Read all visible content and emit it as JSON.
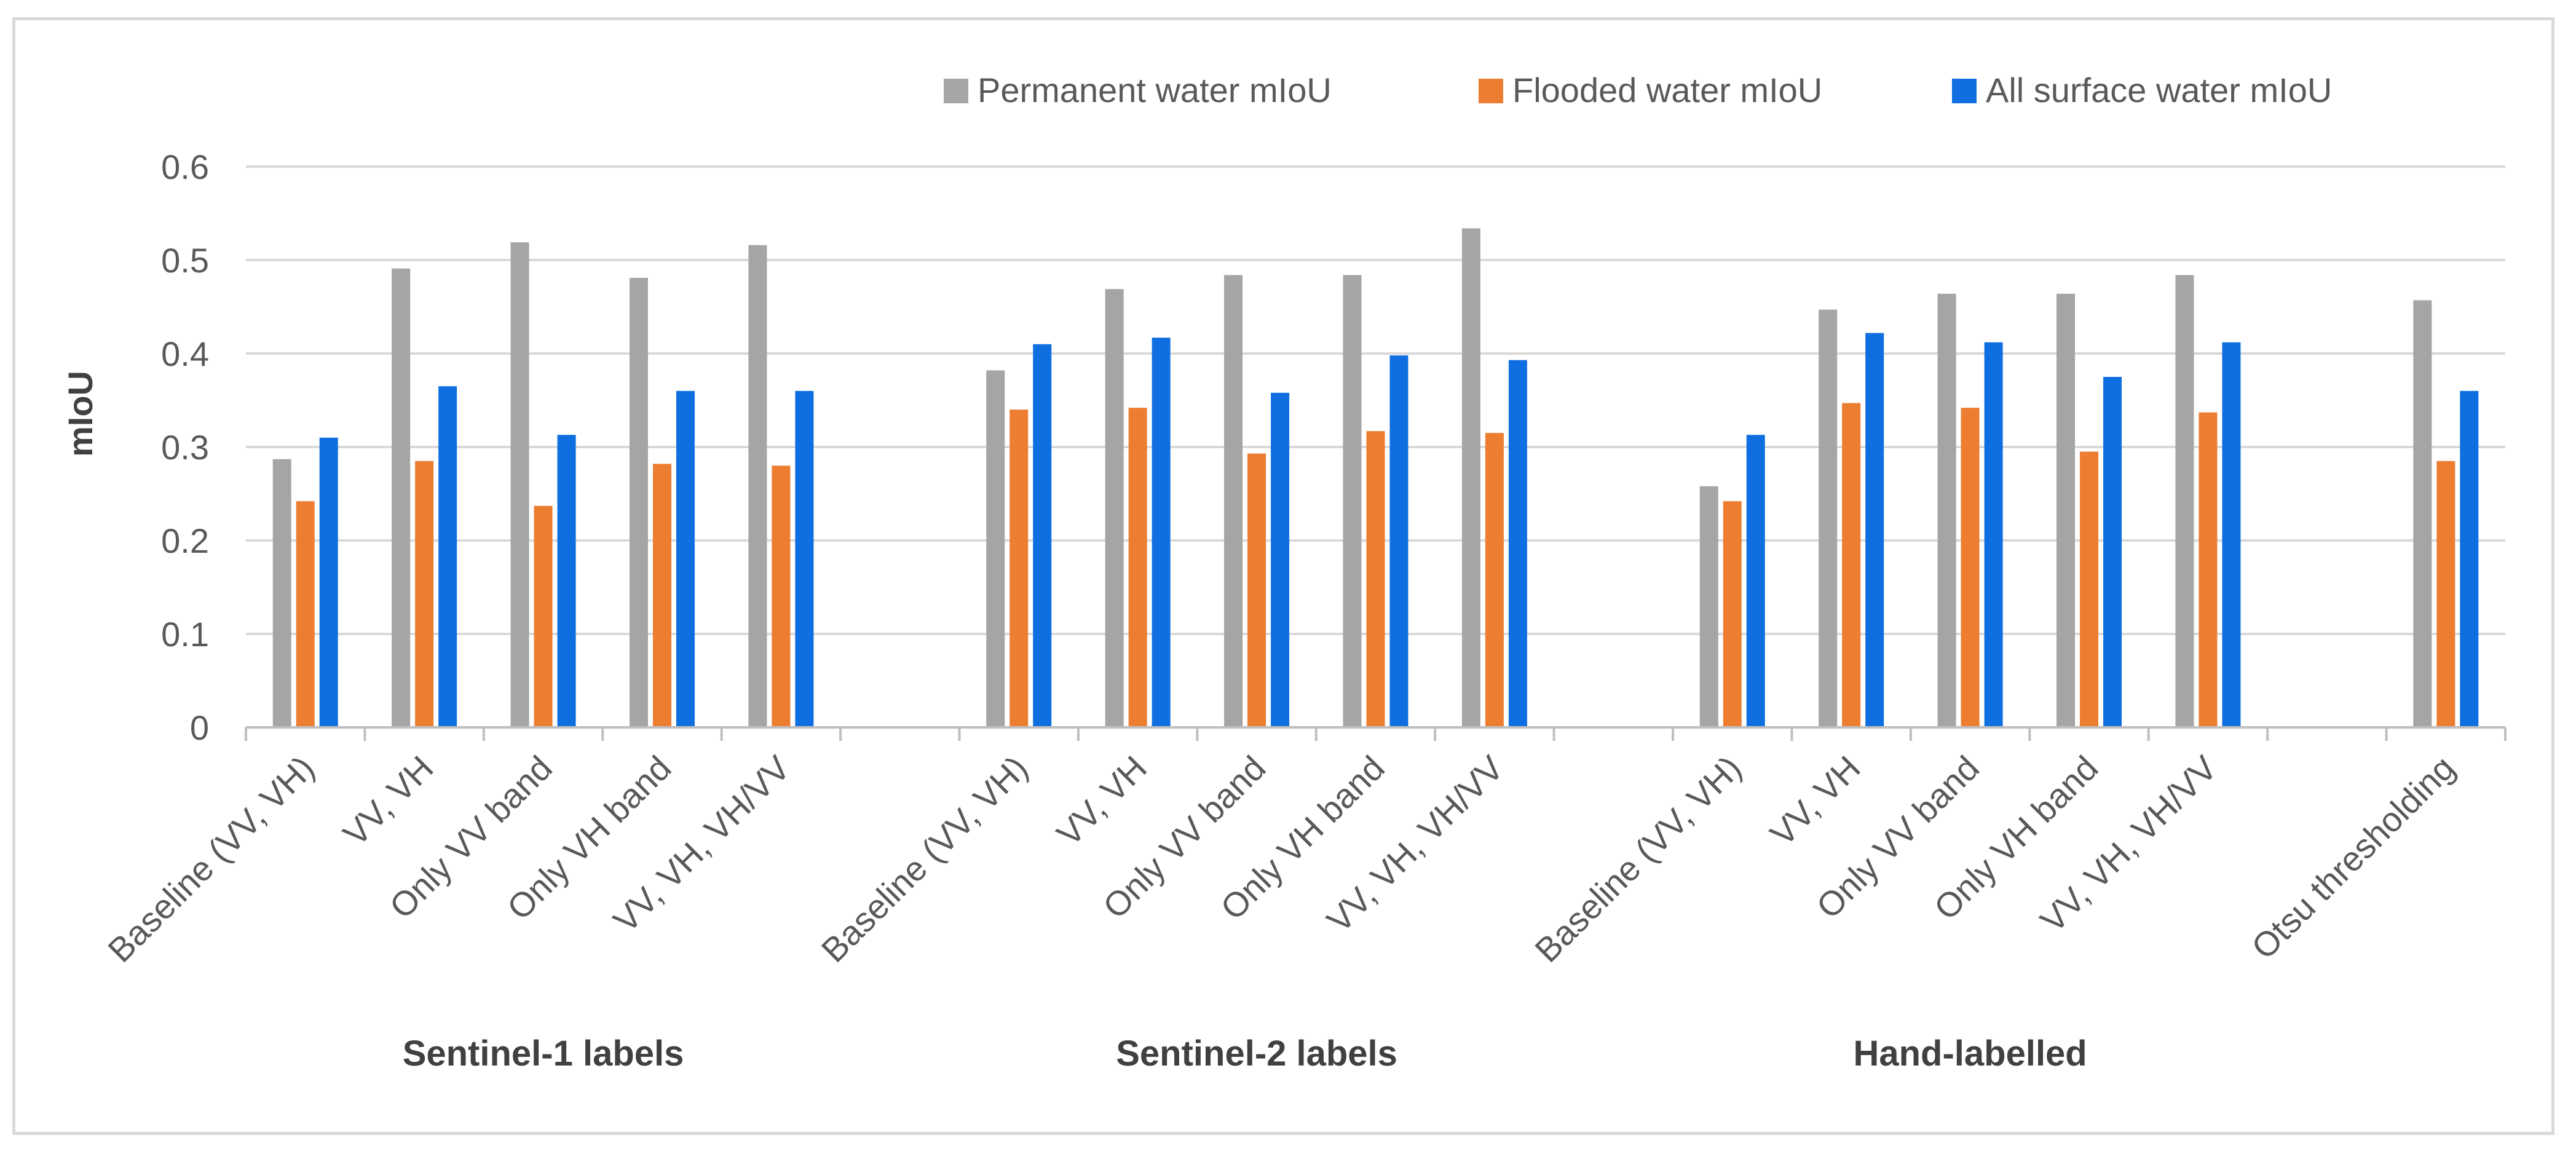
{
  "chart_data": {
    "type": "bar",
    "title": "",
    "ylabel": "mIoU",
    "xlabel": "",
    "ylim": [
      0,
      0.6
    ],
    "yticks": [
      "0",
      "0.1",
      "0.2",
      "0.3",
      "0.4",
      "0.5",
      "0.6"
    ],
    "grid": true,
    "legend_position": "top",
    "groups": [
      {
        "label": "Sentinel-1 labels",
        "categories": [
          "Baseline (VV, VH)",
          "VV, VH",
          "Only VV band",
          "Only VH band",
          "VV, VH, VH/VV"
        ]
      },
      {
        "label": "Sentinel-2 labels",
        "categories": [
          "Baseline (VV, VH)",
          "VV, VH",
          "Only VV band",
          "Only VH band",
          "VV, VH, VH/VV"
        ]
      },
      {
        "label": "Hand-labelled",
        "categories": [
          "Baseline (VV, VH)",
          "VV, VH",
          "Only VV band",
          "Only VH band",
          "VV, VH, VH/VV"
        ]
      },
      {
        "label": "",
        "categories": [
          "Otsu thresholding"
        ]
      }
    ],
    "series": [
      {
        "name": "Permanent water mIoU",
        "color": "#a5a5a5",
        "values": [
          0.287,
          0.491,
          0.519,
          0.481,
          0.516,
          0.382,
          0.469,
          0.484,
          0.484,
          0.534,
          0.258,
          0.447,
          0.464,
          0.464,
          0.484,
          0.457
        ]
      },
      {
        "name": "Flooded water mIoU",
        "color": "#ed7d31",
        "values": [
          0.242,
          0.285,
          0.237,
          0.282,
          0.28,
          0.34,
          0.342,
          0.293,
          0.317,
          0.315,
          0.242,
          0.347,
          0.342,
          0.295,
          0.337,
          0.285
        ]
      },
      {
        "name": "All surface water mIoU",
        "color": "#0f6fe0",
        "values": [
          0.31,
          0.365,
          0.313,
          0.36,
          0.36,
          0.41,
          0.417,
          0.358,
          0.398,
          0.393,
          0.313,
          0.422,
          0.412,
          0.375,
          0.412,
          0.36
        ]
      }
    ]
  }
}
